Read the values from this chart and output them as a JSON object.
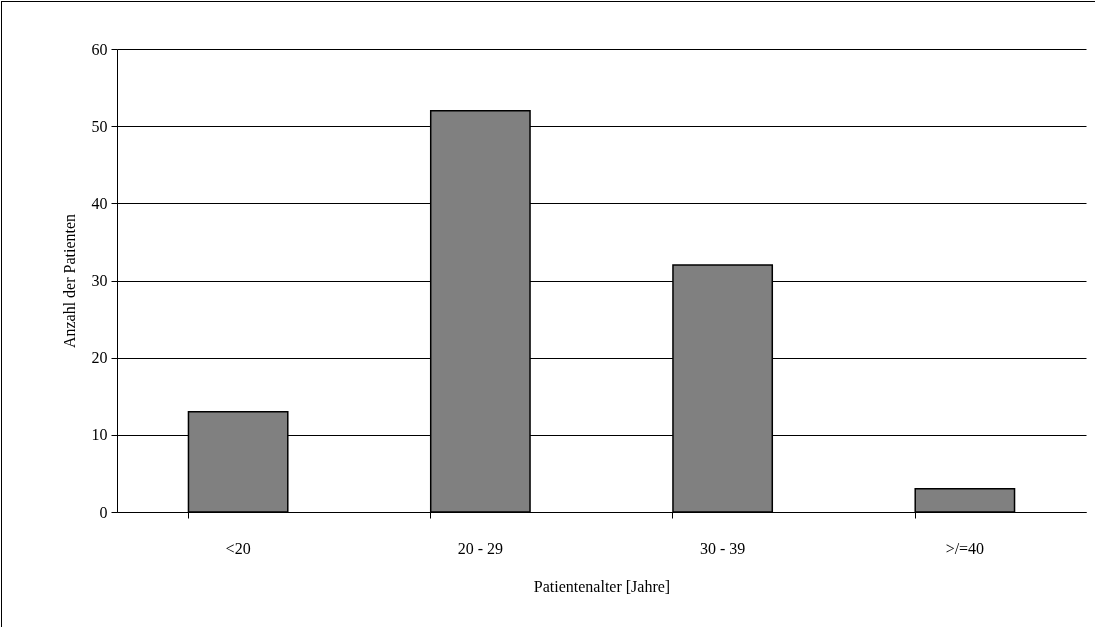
{
  "chart_data": {
    "type": "bar",
    "xlabel": "Patientenalter [Jahre]",
    "ylabel": "Anzahl der Patienten",
    "categories": [
      "<20",
      "20 - 29",
      "30 - 39",
      ">/=40"
    ],
    "values": [
      13,
      52,
      32,
      3
    ],
    "color": "#808080",
    "ylim": [
      0,
      60
    ],
    "yticks": [
      0,
      10,
      20,
      30,
      40,
      50,
      60
    ],
    "grid": "y"
  }
}
